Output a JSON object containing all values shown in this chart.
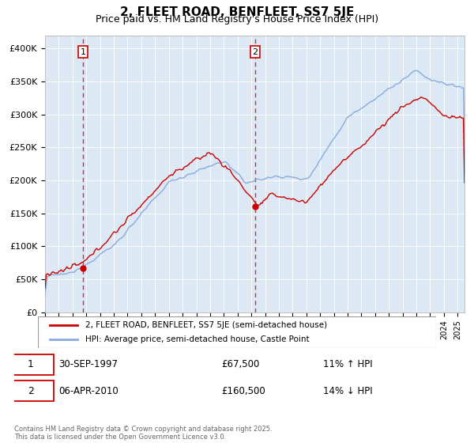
{
  "title": "2, FLEET ROAD, BENFLEET, SS7 5JE",
  "subtitle": "Price paid vs. HM Land Registry's House Price Index (HPI)",
  "title_fontsize": 11,
  "subtitle_fontsize": 9,
  "legend_label_house": "2, FLEET ROAD, BENFLEET, SS7 5JE (semi-detached house)",
  "legend_label_hpi": "HPI: Average price, semi-detached house, Castle Point",
  "annotation1_date": "30-SEP-1997",
  "annotation1_price": "£67,500",
  "annotation1_info": "11% ↑ HPI",
  "annotation2_date": "06-APR-2010",
  "annotation2_price": "£160,500",
  "annotation2_info": "14% ↓ HPI",
  "copyright_text": "Contains HM Land Registry data © Crown copyright and database right 2025.\nThis data is licensed under the Open Government Licence v3.0.",
  "house_color": "#cc0000",
  "hpi_color": "#88aadd",
  "annotation_color": "#cc0000",
  "bg_color": "#dce9f5",
  "ylim_min": 0,
  "ylim_max": 420000,
  "yticks": [
    0,
    50000,
    100000,
    150000,
    200000,
    250000,
    300000,
    350000,
    400000
  ],
  "ytick_labels": [
    "£0",
    "£50K",
    "£100K",
    "£150K",
    "£200K",
    "£250K",
    "£300K",
    "£350K",
    "£400K"
  ],
  "sale1_year": 1997.75,
  "sale1_price": 67500,
  "sale2_year": 2010.27,
  "sale2_price": 160500
}
